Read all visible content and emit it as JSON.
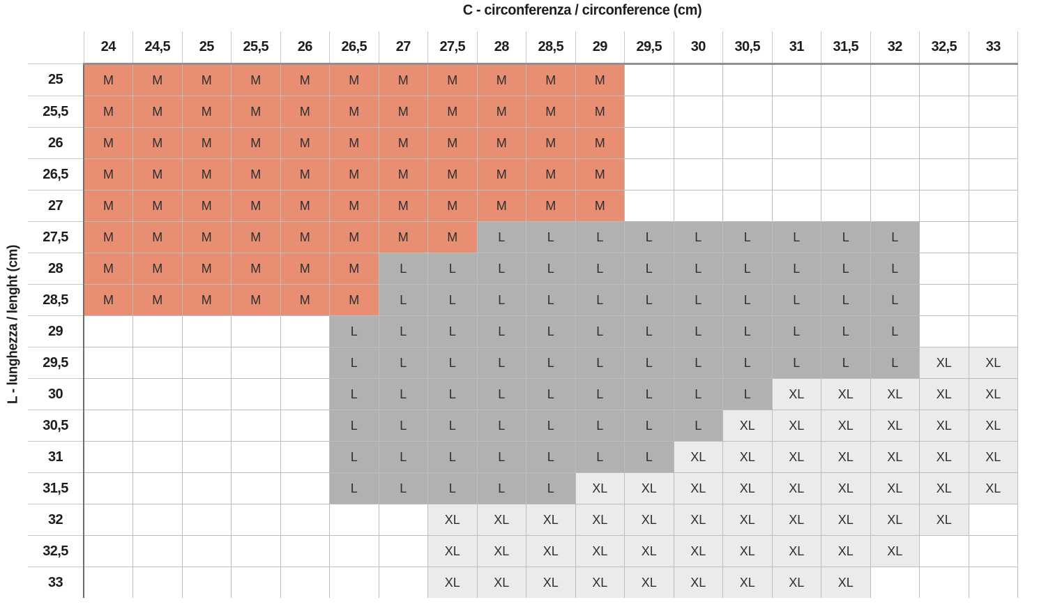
{
  "chart_data": {
    "type": "heatmap",
    "title": "C - circonferenza / circonference (cm)",
    "xlabel": "C - circonferenza / circonference (cm)",
    "ylabel": "L - lunghezza / lenght (cm)",
    "x_categories": [
      "24",
      "24,5",
      "25",
      "25,5",
      "26",
      "26,5",
      "27",
      "27,5",
      "28",
      "28,5",
      "29",
      "29,5",
      "30",
      "30,5",
      "31",
      "31,5",
      "32",
      "32,5",
      "33"
    ],
    "y_categories": [
      "25",
      "25,5",
      "26",
      "26,5",
      "27",
      "27,5",
      "28",
      "28,5",
      "29",
      "29,5",
      "30",
      "30,5",
      "31",
      "31,5",
      "32",
      "32,5",
      "33"
    ],
    "values": [
      [
        "M",
        "M",
        "M",
        "M",
        "M",
        "M",
        "M",
        "M",
        "M",
        "M",
        "M",
        "",
        "",
        "",
        "",
        "",
        "",
        "",
        ""
      ],
      [
        "M",
        "M",
        "M",
        "M",
        "M",
        "M",
        "M",
        "M",
        "M",
        "M",
        "M",
        "",
        "",
        "",
        "",
        "",
        "",
        "",
        ""
      ],
      [
        "M",
        "M",
        "M",
        "M",
        "M",
        "M",
        "M",
        "M",
        "M",
        "M",
        "M",
        "",
        "",
        "",
        "",
        "",
        "",
        "",
        ""
      ],
      [
        "M",
        "M",
        "M",
        "M",
        "M",
        "M",
        "M",
        "M",
        "M",
        "M",
        "M",
        "",
        "",
        "",
        "",
        "",
        "",
        "",
        ""
      ],
      [
        "M",
        "M",
        "M",
        "M",
        "M",
        "M",
        "M",
        "M",
        "M",
        "M",
        "M",
        "",
        "",
        "",
        "",
        "",
        "",
        "",
        ""
      ],
      [
        "M",
        "M",
        "M",
        "M",
        "M",
        "M",
        "M",
        "M",
        "L",
        "L",
        "L",
        "L",
        "L",
        "L",
        "L",
        "L",
        "L",
        "",
        ""
      ],
      [
        "M",
        "M",
        "M",
        "M",
        "M",
        "M",
        "L",
        "L",
        "L",
        "L",
        "L",
        "L",
        "L",
        "L",
        "L",
        "L",
        "L",
        "",
        ""
      ],
      [
        "M",
        "M",
        "M",
        "M",
        "M",
        "M",
        "L",
        "L",
        "L",
        "L",
        "L",
        "L",
        "L",
        "L",
        "L",
        "L",
        "L",
        "",
        ""
      ],
      [
        "",
        "",
        "",
        "",
        "",
        "L",
        "L",
        "L",
        "L",
        "L",
        "L",
        "L",
        "L",
        "L",
        "L",
        "L",
        "L",
        "",
        ""
      ],
      [
        "",
        "",
        "",
        "",
        "",
        "L",
        "L",
        "L",
        "L",
        "L",
        "L",
        "L",
        "L",
        "L",
        "L",
        "L",
        "L",
        "XL",
        "XL"
      ],
      [
        "",
        "",
        "",
        "",
        "",
        "L",
        "L",
        "L",
        "L",
        "L",
        "L",
        "L",
        "L",
        "L",
        "XL",
        "XL",
        "XL",
        "XL",
        "XL"
      ],
      [
        "",
        "",
        "",
        "",
        "",
        "L",
        "L",
        "L",
        "L",
        "L",
        "L",
        "L",
        "L",
        "XL",
        "XL",
        "XL",
        "XL",
        "XL",
        "XL"
      ],
      [
        "",
        "",
        "",
        "",
        "",
        "L",
        "L",
        "L",
        "L",
        "L",
        "L",
        "L",
        "XL",
        "XL",
        "XL",
        "XL",
        "XL",
        "XL",
        "XL"
      ],
      [
        "",
        "",
        "",
        "",
        "",
        "L",
        "L",
        "L",
        "L",
        "L",
        "XL",
        "XL",
        "XL",
        "XL",
        "XL",
        "XL",
        "XL",
        "XL",
        "XL"
      ],
      [
        "",
        "",
        "",
        "",
        "",
        "",
        "",
        "XL",
        "XL",
        "XL",
        "XL",
        "XL",
        "XL",
        "XL",
        "XL",
        "XL",
        "XL",
        "XL",
        ""
      ],
      [
        "",
        "",
        "",
        "",
        "",
        "",
        "",
        "XL",
        "XL",
        "XL",
        "XL",
        "XL",
        "XL",
        "XL",
        "XL",
        "XL",
        "XL",
        "",
        ""
      ],
      [
        "",
        "",
        "",
        "",
        "",
        "",
        "",
        "XL",
        "XL",
        "XL",
        "XL",
        "XL",
        "XL",
        "XL",
        "XL",
        "XL",
        "",
        "",
        ""
      ]
    ],
    "cell_colors": {
      "M": "#e78e73",
      "L": "#b2b1b1",
      "XL": "#ebebeb"
    },
    "empty_color": "#ffffff",
    "grid": true,
    "legend_position": "none"
  }
}
